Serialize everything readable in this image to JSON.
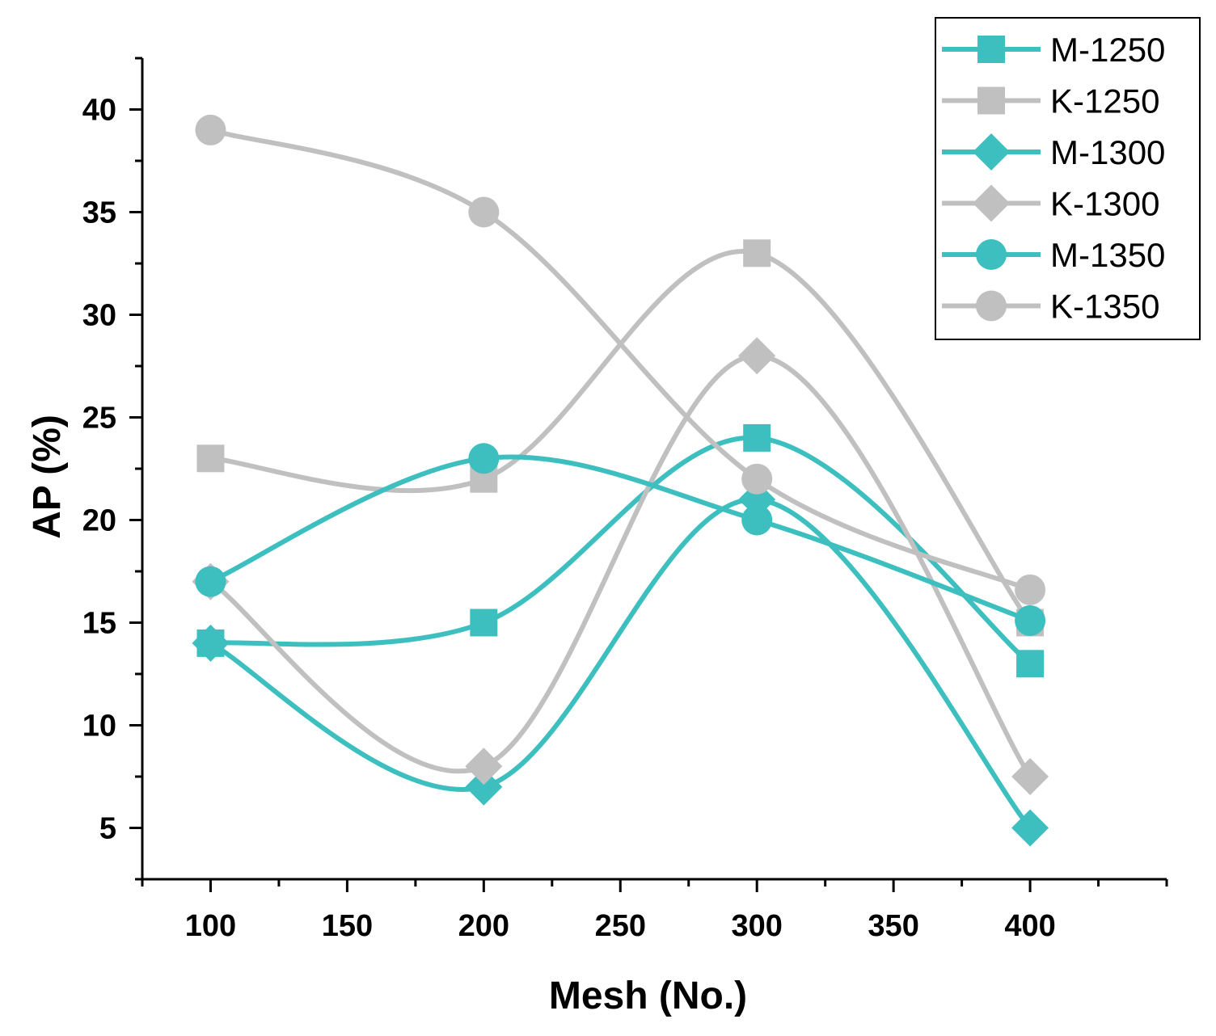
{
  "chart_data": {
    "type": "line",
    "title": "",
    "xlabel": "Mesh (No.)",
    "ylabel": "AP (%)",
    "xlim": [
      75,
      450
    ],
    "ylim": [
      2.5,
      42.5
    ],
    "xticks": [
      100,
      150,
      200,
      250,
      300,
      350,
      400
    ],
    "yticks": [
      5,
      10,
      15,
      20,
      25,
      30,
      35,
      40
    ],
    "grid": false,
    "legend_position": "top-right",
    "x": [
      100,
      200,
      300,
      400
    ],
    "series": [
      {
        "name": "M-1250",
        "marker": "square",
        "color": "#3dbfbf",
        "values": [
          14,
          15,
          24,
          13
        ]
      },
      {
        "name": "K-1250",
        "marker": "square",
        "color": "#c0c0c0",
        "values": [
          23,
          22,
          33,
          15
        ]
      },
      {
        "name": "M-1300",
        "marker": "diamond",
        "color": "#3dbfbf",
        "values": [
          14,
          7,
          21,
          5
        ]
      },
      {
        "name": "K-1300",
        "marker": "diamond",
        "color": "#c0c0c0",
        "values": [
          17,
          8,
          28,
          7.5
        ]
      },
      {
        "name": "M-1350",
        "marker": "circle",
        "color": "#3dbfbf",
        "values": [
          17,
          23,
          20,
          15.1
        ]
      },
      {
        "name": "K-1350",
        "marker": "circle",
        "color": "#c0c0c0",
        "values": [
          39,
          35,
          22,
          16.6
        ]
      }
    ]
  }
}
